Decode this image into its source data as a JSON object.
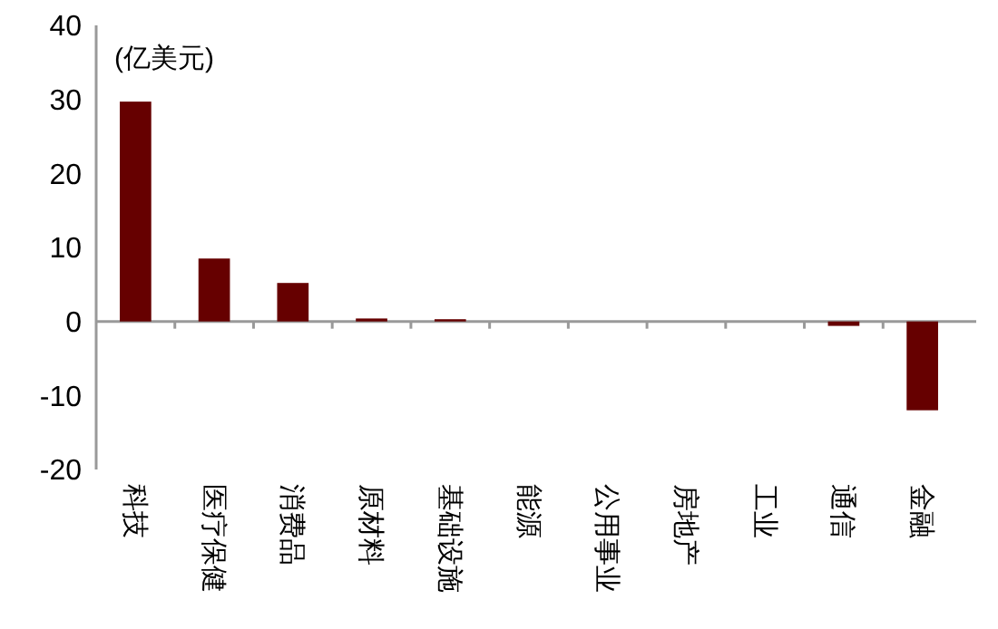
{
  "chart_data": {
    "type": "bar",
    "ylabel": "(亿美元)",
    "categories": [
      "科技",
      "医疗保健",
      "消费品",
      "原材料",
      "基础设施",
      "能源",
      "公用事业",
      "房地产",
      "工业",
      "通信",
      "金融"
    ],
    "values": [
      29.7,
      8.5,
      5.2,
      0.4,
      0.3,
      0,
      0,
      0,
      0,
      -0.6,
      -12
    ],
    "color": "#660000",
    "ylim": [
      -20,
      40
    ],
    "yticks": [
      -20,
      -10,
      0,
      10,
      20,
      30,
      40
    ]
  }
}
